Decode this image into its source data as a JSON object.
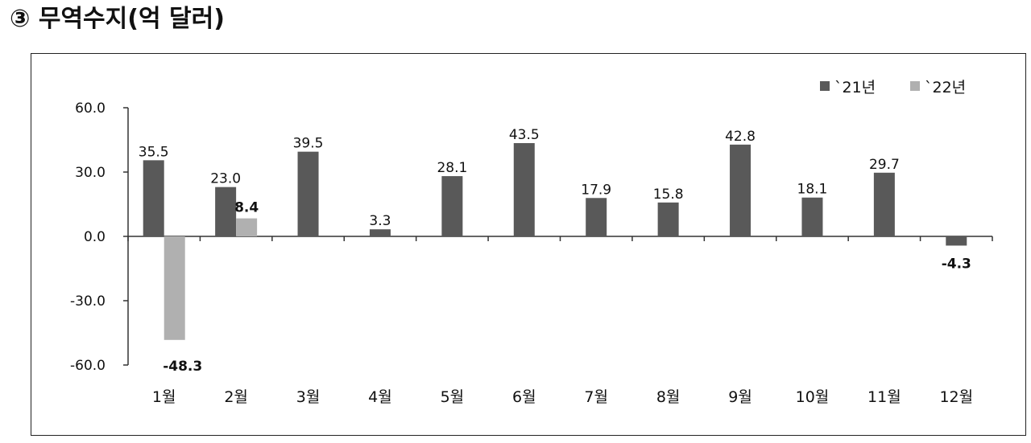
{
  "page": {
    "title": "③ 무역수지(억 달러)"
  },
  "chart_data": {
    "type": "bar",
    "title": "③ 무역수지(억 달러)",
    "categories": [
      "1월",
      "2월",
      "3월",
      "4월",
      "5월",
      "6월",
      "7월",
      "8월",
      "9월",
      "10월",
      "11월",
      "12월"
    ],
    "series": [
      {
        "name": "`21년",
        "color": "#595959",
        "values": [
          35.5,
          23.0,
          39.5,
          3.3,
          28.1,
          43.5,
          17.9,
          15.8,
          42.8,
          18.1,
          29.7,
          -4.3
        ],
        "labels": [
          "35.5",
          "23.0",
          "39.5",
          "3.3",
          "28.1",
          "43.5",
          "17.9",
          "15.8",
          "42.8",
          "18.1",
          "29.7",
          "-4.3"
        ]
      },
      {
        "name": "`22년",
        "color": "#b0b0b0",
        "values": [
          -48.3,
          8.4,
          null,
          null,
          null,
          null,
          null,
          null,
          null,
          null,
          null,
          null
        ],
        "labels": [
          "-48.3",
          "8.4",
          null,
          null,
          null,
          null,
          null,
          null,
          null,
          null,
          null,
          null
        ]
      }
    ],
    "ylim": [
      -60,
      60
    ],
    "yticks": [
      60,
      30,
      0,
      -30,
      -60
    ],
    "ytick_labels": [
      "60.0",
      "30.0",
      "0.0",
      "-30.0",
      "-60.0"
    ],
    "xlabel": "",
    "ylabel": "",
    "grid": false,
    "legend_position": "top-right"
  }
}
